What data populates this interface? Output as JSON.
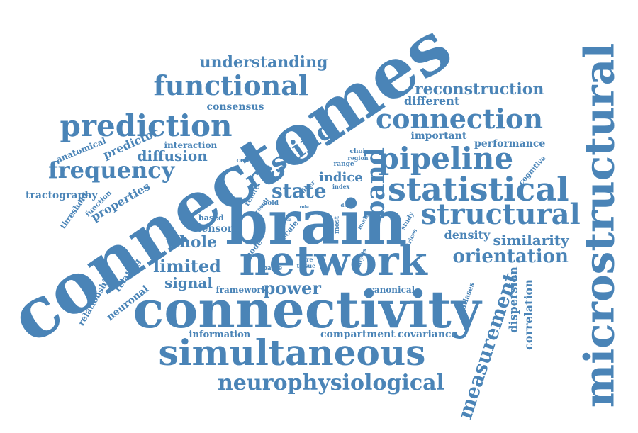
{
  "colors": {
    "word": "#4a84b7",
    "background": "#ffffff"
  },
  "words": {
    "connectomes": "connectomes",
    "brain": "brain",
    "network": "network",
    "connectivity": "connectivity",
    "simultaneous": "simultaneous",
    "microstructural": "microstructural",
    "statistical": "statistical",
    "structural": "structural",
    "connection": "connection",
    "prediction": "prediction",
    "functional": "functional",
    "pipeline": "pipeline",
    "frequency": "frequency",
    "resting": "resting",
    "band": "band",
    "state": "state",
    "neurophysiological": "neurophysiological",
    "measurement": "measurement",
    "understanding": "understanding",
    "reconstruction": "reconstruction",
    "orientation": "orientation",
    "similarity": "similarity",
    "whole": "whole",
    "limited": "limited",
    "power": "power",
    "signal": "signal",
    "diffusion": "diffusion",
    "indice": "indice",
    "properties": "properties",
    "tractography": "tractography",
    "consensus": "consensus",
    "different": "different",
    "important": "important",
    "performance": "performance",
    "predictor": "predictor",
    "anatomical": "anatomical",
    "interaction": "interaction",
    "density": "density",
    "dispersion": "dispersion",
    "correlation": "correlation",
    "compartment": "compartment",
    "covariance": "covariance",
    "information": "information",
    "canonical": "canonical",
    "framework": "framework",
    "neuronal": "neuronal",
    "relating": "relating",
    "relationship": "relationship",
    "tensor": "tensor",
    "based": "based",
    "atlases": "atlases",
    "cognitive": "cognitive",
    "threshold": "threshold",
    "function": "function",
    "cellular": "cellular",
    "relate": "relate",
    "fiber": "fiber",
    "range": "range",
    "choice": "choice",
    "region": "region",
    "index": "index",
    "result": "result",
    "bold": "bold",
    "most": "most",
    "model": "model",
    "data": "data",
    "study": "study",
    "matrices": "matrices",
    "scale": "scale",
    "node": "node",
    "sparse": "sparse",
    "tissue": "tissue",
    "core": "core",
    "analysis": "analysis",
    "role": "role",
    "seca": "seca"
  }
}
